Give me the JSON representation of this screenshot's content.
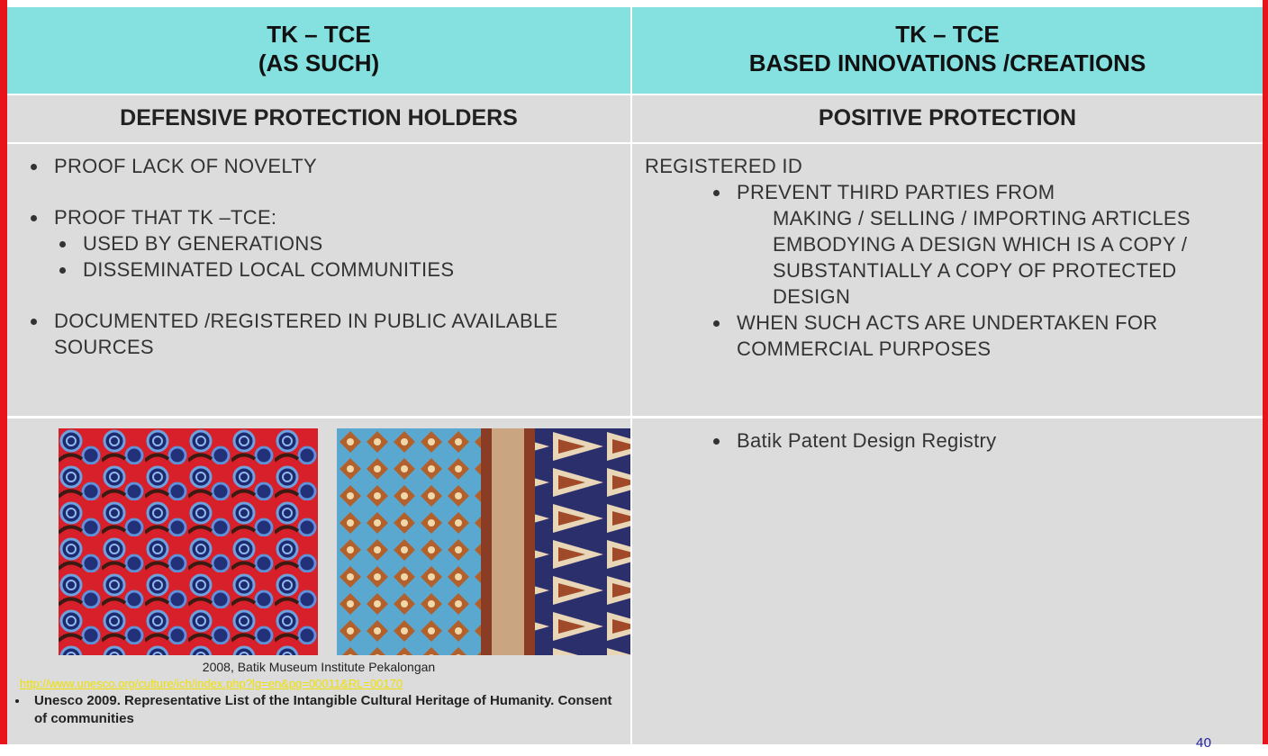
{
  "header": {
    "left": [
      "TK – TCE",
      "(AS SUCH)"
    ],
    "right": [
      "TK – TCE",
      "BASED INNOVATIONS /CREATIONS"
    ]
  },
  "subheader": {
    "left": "DEFENSIVE PROTECTION HOLDERS",
    "right": "POSITIVE PROTECTION"
  },
  "left_body": {
    "item1": "PROOF LACK OF NOVELTY",
    "item2": "PROOF THAT TK –TCE:",
    "item2_sub": [
      "USED BY GENERATIONS",
      "DISSEMINATED LOCAL COMMUNITIES"
    ],
    "item3": "DOCUMENTED /REGISTERED  IN PUBLIC AVAILABLE SOURCES"
  },
  "right_body": {
    "intro": "REGISTERED ID",
    "item1": "PREVENT THIRD PARTIES FROM",
    "item1_cont": "MAKING / SELLING / IMPORTING ARTICLES EMBODYING A DESIGN WHICH IS A COPY / SUBSTANTIALLY A COPY OF PROTECTED DESIGN",
    "item2": "WHEN SUCH ACTS ARE UNDERTAKEN FOR COMMERCIAL PURPOSES"
  },
  "bottom_left": {
    "caption": "2008, Batik Museum Institute Pekalongan",
    "url": "http://www.unesco.org/culture/ich/index.php?lg=en&pg=00011&RL=00170",
    "note": "Unesco 2009.  Representative List of the Intangible Cultural Heritage of Humanity. Consent of communities"
  },
  "bottom_right": {
    "item": "Batik Patent Design Registry"
  },
  "page_number": "40"
}
